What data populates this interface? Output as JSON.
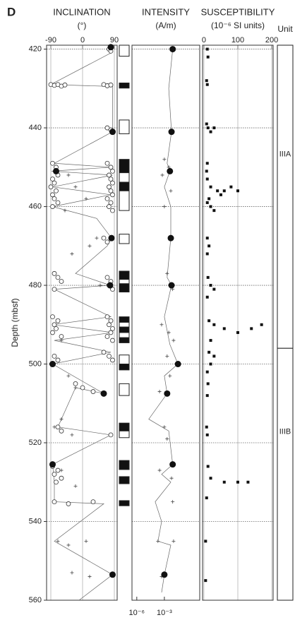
{
  "label": "D",
  "chart_data": [
    {
      "type": "scatter",
      "title": "INCLINATION",
      "subtitle": "(°)",
      "ylabel": "Depth (mbsf)",
      "ylim": [
        419,
        560
      ],
      "yticks": [
        420,
        440,
        460,
        480,
        500,
        520,
        540,
        560
      ],
      "ygrid": true,
      "xlim": [
        -102,
        98
      ],
      "xticks": [
        -90,
        0,
        90
      ],
      "xtick_side": "top",
      "xgrid": true,
      "series": [
        {
          "marker": "line",
          "color": "#666",
          "x": [
            80,
            80,
            -90,
            85,
            85,
            -80,
            80,
            -88,
            85,
            -85,
            80,
            -85,
            40,
            82,
            70,
            -20,
            78,
            -80,
            80,
            -85,
            85,
            -80,
            80,
            -85,
            60,
            -20,
            -70,
            80,
            -85,
            -80,
            -80,
            60,
            -80,
            85,
            -10
          ],
          "y": [
            419.5,
            421,
            429,
            429.5,
            441,
            449,
            450,
            451,
            452,
            455,
            457,
            460,
            463,
            468,
            470,
            477,
            480,
            481,
            488,
            490,
            492,
            494,
            497,
            500,
            507.5,
            506,
            516,
            518,
            525.5,
            530,
            535,
            535.5,
            545,
            553.5,
            560
          ]
        },
        {
          "marker": "circle",
          "color": "#333",
          "x": [
            75,
            80,
            -90,
            -80,
            -70,
            -60,
            -50,
            60,
            70,
            80,
            70,
            80,
            -85,
            -75,
            -70,
            -85,
            -80,
            -90,
            -75,
            -85,
            -80,
            -70,
            -85,
            70,
            80,
            85,
            75,
            80,
            85,
            75,
            80,
            85,
            70,
            80,
            75,
            85,
            60,
            70,
            -80,
            -70,
            -60,
            -80,
            70,
            80,
            75,
            85,
            -85,
            -70,
            -80,
            -75,
            -85,
            -60,
            70,
            80,
            75,
            85,
            80,
            70,
            85,
            -80,
            -70,
            60,
            75,
            85,
            -20,
            0,
            30,
            -70,
            -60,
            80,
            -85,
            -70,
            -80,
            -60,
            -75,
            -80,
            -40,
            30
          ],
          "y": [
            420,
            420.5,
            429,
            429.2,
            429,
            429.4,
            429.1,
            429,
            429.3,
            429.1,
            440,
            440.5,
            449,
            450,
            452,
            453,
            454,
            455,
            456,
            457,
            458,
            459,
            460,
            449,
            450,
            451,
            452,
            453,
            454,
            455,
            456,
            457,
            458,
            459,
            460,
            461,
            468,
            469,
            477,
            478,
            479,
            481,
            478,
            479,
            480,
            481,
            488,
            489,
            490,
            491,
            492,
            493,
            488,
            489,
            490,
            491,
            492,
            493,
            494,
            498,
            499,
            497,
            498,
            499,
            505,
            506,
            507,
            516,
            517,
            518,
            526,
            527,
            528,
            529,
            530,
            535,
            535.5,
            535
          ]
        },
        {
          "marker": "cross",
          "color": "#444",
          "x": [
            -40,
            -20,
            10,
            -50,
            40,
            20,
            -30,
            50,
            -60,
            -40,
            -20,
            -60,
            -80,
            -30,
            -60,
            -20,
            -70,
            -40,
            10,
            20,
            -30
          ],
          "y": [
            452,
            455,
            458,
            461,
            468,
            470,
            472,
            480,
            494,
            503,
            506,
            514,
            516,
            518,
            527,
            531,
            545,
            546,
            545,
            554,
            553
          ]
        },
        {
          "marker": "dot",
          "color": "#111",
          "x": [
            80,
            85,
            -75,
            82,
            78,
            -85,
            60,
            -85,
            85
          ],
          "y": [
            419.5,
            441,
            451,
            468,
            480,
            500,
            507.5,
            525.5,
            553.5
          ]
        }
      ]
    },
    {
      "type": "interval",
      "top": [
        419,
        428.6,
        438,
        448,
        451.4,
        453.8,
        456,
        467,
        476.4,
        478.5,
        479.6,
        488,
        489.4,
        490.6,
        492,
        493.3,
        497.7,
        500,
        505,
        515,
        517,
        524.5,
        528.6,
        534.7
      ],
      "bottom": [
        421.8,
        429.9,
        441.5,
        451.4,
        453.8,
        456,
        461,
        469.4,
        478.5,
        479.6,
        481.7,
        489.4,
        490.6,
        492,
        493.3,
        494.6,
        500,
        501.5,
        508,
        517,
        518.7,
        526.8,
        530.4,
        536
      ],
      "colors": [
        "#fff",
        "#111",
        "#fff",
        "#111",
        "#fff",
        "#111",
        "#fff",
        "#fff",
        "#111",
        "#fff",
        "#111",
        "#111",
        "#fff",
        "#111",
        "#fff",
        "#111",
        "#fff",
        "#111",
        "#fff",
        "#111",
        "#fff",
        "#111",
        "#111",
        "#111"
      ]
    },
    {
      "type": "scatter",
      "title": "INTENSITY",
      "subtitle": "(A/m)",
      "xscale": "log",
      "xlim": [
        3e-07,
        7
      ],
      "xticks": [
        {
          "value": 1e-06,
          "label": "10⁻⁶"
        },
        {
          "value": 0.001,
          "label": "10⁻³"
        }
      ],
      "xtick_side": "bottom",
      "xgrid": false,
      "series": [
        {
          "marker": "line",
          "color": "#666",
          "x": [
            0.008,
            0.003,
            0.006,
            0.002,
            0.004,
            0.001,
            0.005,
            0.005,
            0.002,
            0.006,
            0.001,
            0.004,
            0.03,
            0.001,
            0.002,
            2e-05,
            0.003,
            0.008,
            0.0005,
            0.005,
            0.0001,
            0.0005,
            0.0002,
            0.005,
            0.001,
            0.0005
          ],
          "y": [
            420,
            430,
            441,
            449,
            451,
            455,
            460,
            468,
            478,
            480,
            488,
            495,
            500,
            503,
            507.5,
            514,
            517,
            525.5,
            528,
            530,
            535,
            540,
            545,
            546,
            553.5,
            558
          ]
        },
        {
          "marker": "cross",
          "color": "#444",
          "x": [
            0.001,
            0.003,
            0.0006,
            0.005,
            0.001,
            0.002,
            0.008,
            0.0005,
            0.003,
            0.01,
            0.002,
            0.004,
            0.0003,
            0.001,
            0.002,
            0.0003,
            0.006,
            0.008,
            0.0002,
            0.01,
            0.0005
          ],
          "y": [
            448,
            450,
            452,
            456,
            460,
            477,
            481,
            490,
            492,
            494,
            498,
            503,
            507,
            516,
            519,
            527,
            529,
            535,
            545,
            545,
            554
          ]
        },
        {
          "marker": "dot",
          "color": "#111",
          "x": [
            0.008,
            0.006,
            0.004,
            0.005,
            0.006,
            0.03,
            0.002,
            0.008,
            0.001
          ],
          "y": [
            420,
            441,
            451,
            468,
            480,
            500,
            507.5,
            525.5,
            553.5
          ]
        }
      ]
    },
    {
      "type": "scatter",
      "title": "SUSCEPTIBILITY",
      "subtitle": "(10⁻⁶ SI units)",
      "xlim": [
        -4,
        204
      ],
      "xticks": [
        0,
        100,
        200
      ],
      "xtick_side": "top",
      "xgrid": true,
      "series": [
        {
          "marker": "square",
          "color": "#111",
          "x": [
            10,
            12,
            8,
            10,
            8,
            12,
            20,
            30,
            10,
            8,
            10,
            20,
            40,
            60,
            80,
            100,
            50,
            15,
            10,
            20,
            30,
            10,
            15,
            10,
            12,
            20,
            30,
            10,
            15,
            30,
            60,
            100,
            140,
            170,
            20,
            15,
            30,
            20,
            10,
            12,
            10,
            8,
            10,
            12,
            20,
            60,
            100,
            130,
            8,
            5,
            5
          ],
          "y": [
            420,
            422,
            428,
            429,
            439,
            440,
            441,
            440,
            449,
            451,
            453,
            455,
            456,
            456,
            455,
            456,
            457,
            458,
            459,
            460,
            461,
            468,
            470,
            472,
            478,
            480,
            481,
            483,
            489,
            490,
            491,
            492,
            491,
            490,
            494,
            497,
            498,
            500,
            502,
            505,
            508,
            516,
            518,
            526,
            529,
            530,
            530,
            530,
            534,
            545,
            555
          ]
        }
      ]
    },
    {
      "type": "interval",
      "title": "Unit",
      "top": [
        419,
        496
      ],
      "bottom": [
        496,
        560
      ],
      "labels": [
        "IIIA",
        "IIIB"
      ],
      "colors": [
        "#fff",
        "#fff"
      ]
    }
  ]
}
